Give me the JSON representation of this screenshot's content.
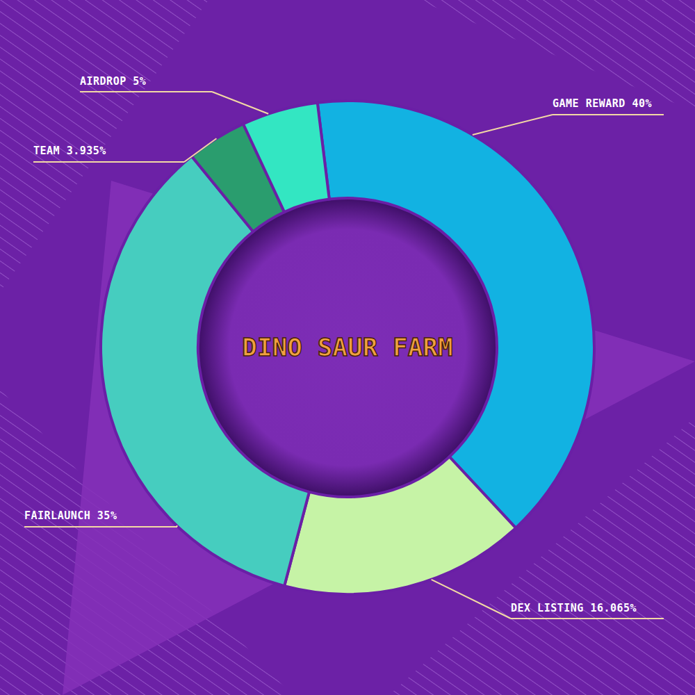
{
  "chart_data": {
    "type": "pie",
    "title": "DINO SAUR FARM",
    "categories": [
      "GAME REWARD",
      "DEX LISTING",
      "FAIRLAUNCH",
      "TEAM",
      "AIRDROP"
    ],
    "values": [
      40,
      16.065,
      35,
      3.935,
      5
    ],
    "value_labels": [
      "40%",
      "16.065%",
      "35%",
      "3.935%",
      "5%"
    ],
    "colors": [
      "#12b2e2",
      "#c6f3a6",
      "#46cdbf",
      "#2a9d6e",
      "#33e6c2"
    ],
    "data_labels": true
  }
}
